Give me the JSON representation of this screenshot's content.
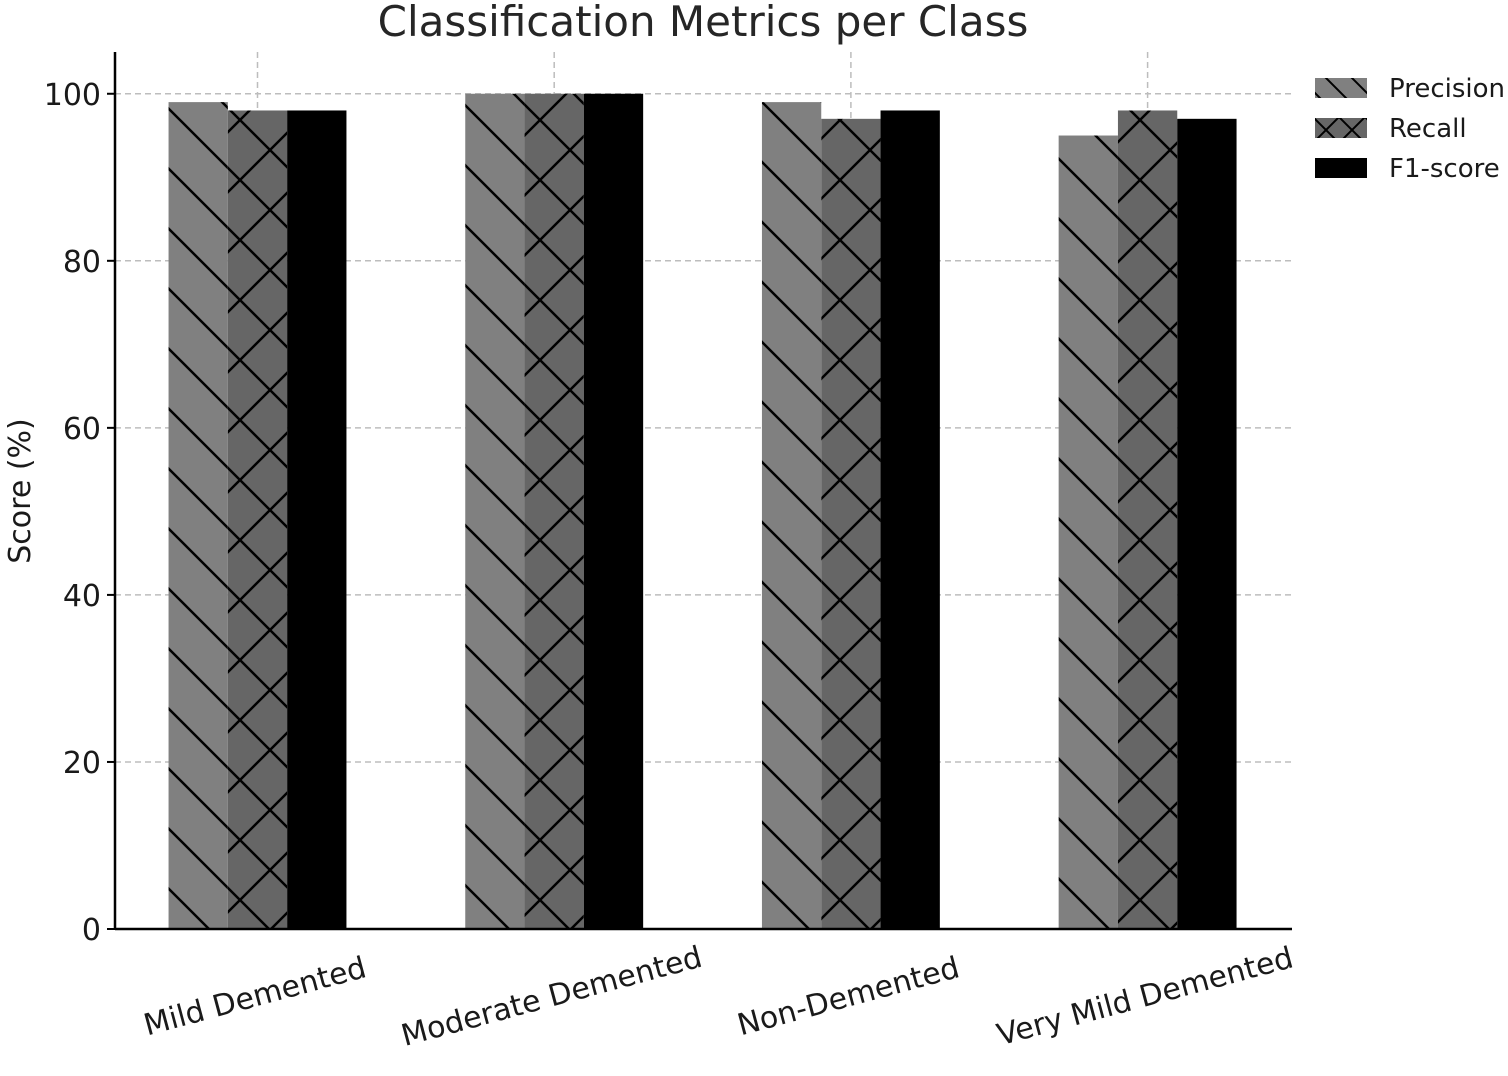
{
  "chart_data": {
    "type": "bar",
    "title": "Classification Metrics per Class",
    "xlabel": "",
    "ylabel": "Score (%)",
    "ylim": [
      0,
      105
    ],
    "yticks": [
      0,
      20,
      40,
      60,
      80,
      100
    ],
    "grid": true,
    "legend_position": "top-right",
    "categories": [
      "Mild Demented",
      "Moderate Demented",
      "Non-Demented",
      "Very Mild Demented"
    ],
    "series": [
      {
        "name": "Precision",
        "values": [
          99,
          100,
          99,
          95
        ],
        "color": "#808080",
        "hatch": "diagonal"
      },
      {
        "name": "Recall",
        "values": [
          98,
          100,
          97,
          98
        ],
        "color": "#666666",
        "hatch": "cross"
      },
      {
        "name": "F1-score",
        "values": [
          98,
          100,
          98,
          97
        ],
        "color": "#000000",
        "hatch": "none"
      }
    ]
  }
}
